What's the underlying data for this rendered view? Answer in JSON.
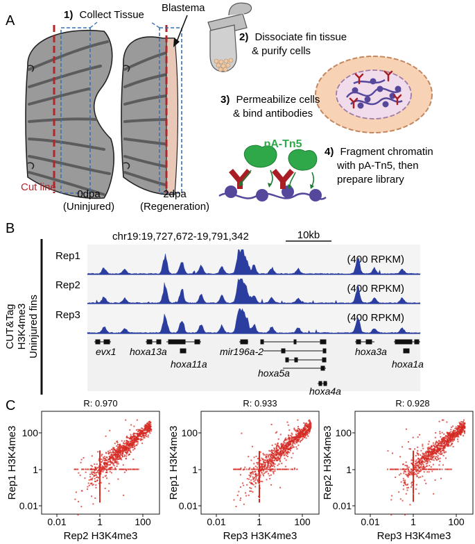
{
  "panelA": {
    "label": "A",
    "step1_num": "1)",
    "step1_text": "Collect Tissue",
    "blastema": "Blastema",
    "step2_num": "2)",
    "step2_line1": "Dissociate fin tissue",
    "step2_line2": "& purify cells",
    "step3_num": "3)",
    "step3_line1": "Permeabilize cells",
    "step3_line2": "& bind antibodies",
    "enzyme": "pA-Tn5",
    "step4_num": "4)",
    "step4_line1": "Fragment chromatin",
    "step4_line2": "with pA-Tn5, then",
    "step4_line3": "prepare library",
    "cut_line": "Cut line",
    "dpa0": "0dpa",
    "dpa0_sub": "(Uninjured)",
    "dpa2": "2dpa",
    "dpa2_sub": "(Regeneration)",
    "colors": {
      "cut_line": "#b0262c",
      "box": "#3a6fb5",
      "fin": "#9a9a9a",
      "blastema": "#e9c8b8",
      "cell": "#f8d2b4",
      "nucleus": "#f1dcec",
      "chromatin": "#55489c",
      "antibody": "#a81e24",
      "tn5": "#2fa84a"
    }
  },
  "panelB": {
    "label": "B",
    "coords": "chr19:19,727,672-19,791,342",
    "scale": "10kb",
    "side_line1": "CUT&Tag",
    "side_line2": "H3K4me3",
    "side_line3": "Uninjured fins",
    "tracks": [
      {
        "name": "Rep1",
        "scale": "(400 RPKM)"
      },
      {
        "name": "Rep2",
        "scale": "(400 RPKM)"
      },
      {
        "name": "Rep3",
        "scale": "(400 RPKM)"
      }
    ],
    "genes": [
      "evx1",
      "hoxa13a",
      "hoxa11a",
      "mir196a-2",
      "hoxa5a",
      "hoxa4a",
      "hoxa3a",
      "hoxa1a"
    ],
    "track_color": "#2b3d9e"
  },
  "panelC": {
    "label": "C",
    "point_color": "#d42a23",
    "plots": [
      {
        "r": "R: 0.970",
        "ylabel": "Rep1 H3K4me3",
        "xlabel": "Rep2 H3K4me3"
      },
      {
        "r": "R: 0.933",
        "ylabel": "Rep1 H3K4me3",
        "xlabel": "Rep3 H3K4me3"
      },
      {
        "r": "R: 0.928",
        "ylabel": "Rep2 H3K4me3",
        "xlabel": "Rep3 H3K4me3"
      }
    ],
    "ticks": [
      "0.01",
      "1",
      "100"
    ]
  },
  "chart_data": [
    {
      "type": "scatter",
      "title": "R: 0.970",
      "xlabel": "Rep2 H3K4me3",
      "ylabel": "Rep1 H3K4me3",
      "scale": "log",
      "xlim": [
        0.002,
        600
      ],
      "ylim": [
        0.002,
        600
      ],
      "x_ticks": [
        0.01,
        1,
        100
      ],
      "y_ticks": [
        0.01,
        1,
        100
      ],
      "r": 0.97
    },
    {
      "type": "scatter",
      "title": "R: 0.933",
      "xlabel": "Rep3 H3K4me3",
      "ylabel": "Rep1 H3K4me3",
      "scale": "log",
      "xlim": [
        0.002,
        600
      ],
      "ylim": [
        0.002,
        600
      ],
      "x_ticks": [
        0.01,
        1,
        100
      ],
      "y_ticks": [
        0.01,
        1,
        100
      ],
      "r": 0.933
    },
    {
      "type": "scatter",
      "title": "R: 0.928",
      "xlabel": "Rep3 H3K4me3",
      "ylabel": "Rep2 H3K4me3",
      "scale": "log",
      "xlim": [
        0.002,
        600
      ],
      "ylim": [
        0.002,
        600
      ],
      "x_ticks": [
        0.01,
        1,
        100
      ],
      "y_ticks": [
        0.01,
        1,
        100
      ],
      "r": 0.928
    }
  ]
}
